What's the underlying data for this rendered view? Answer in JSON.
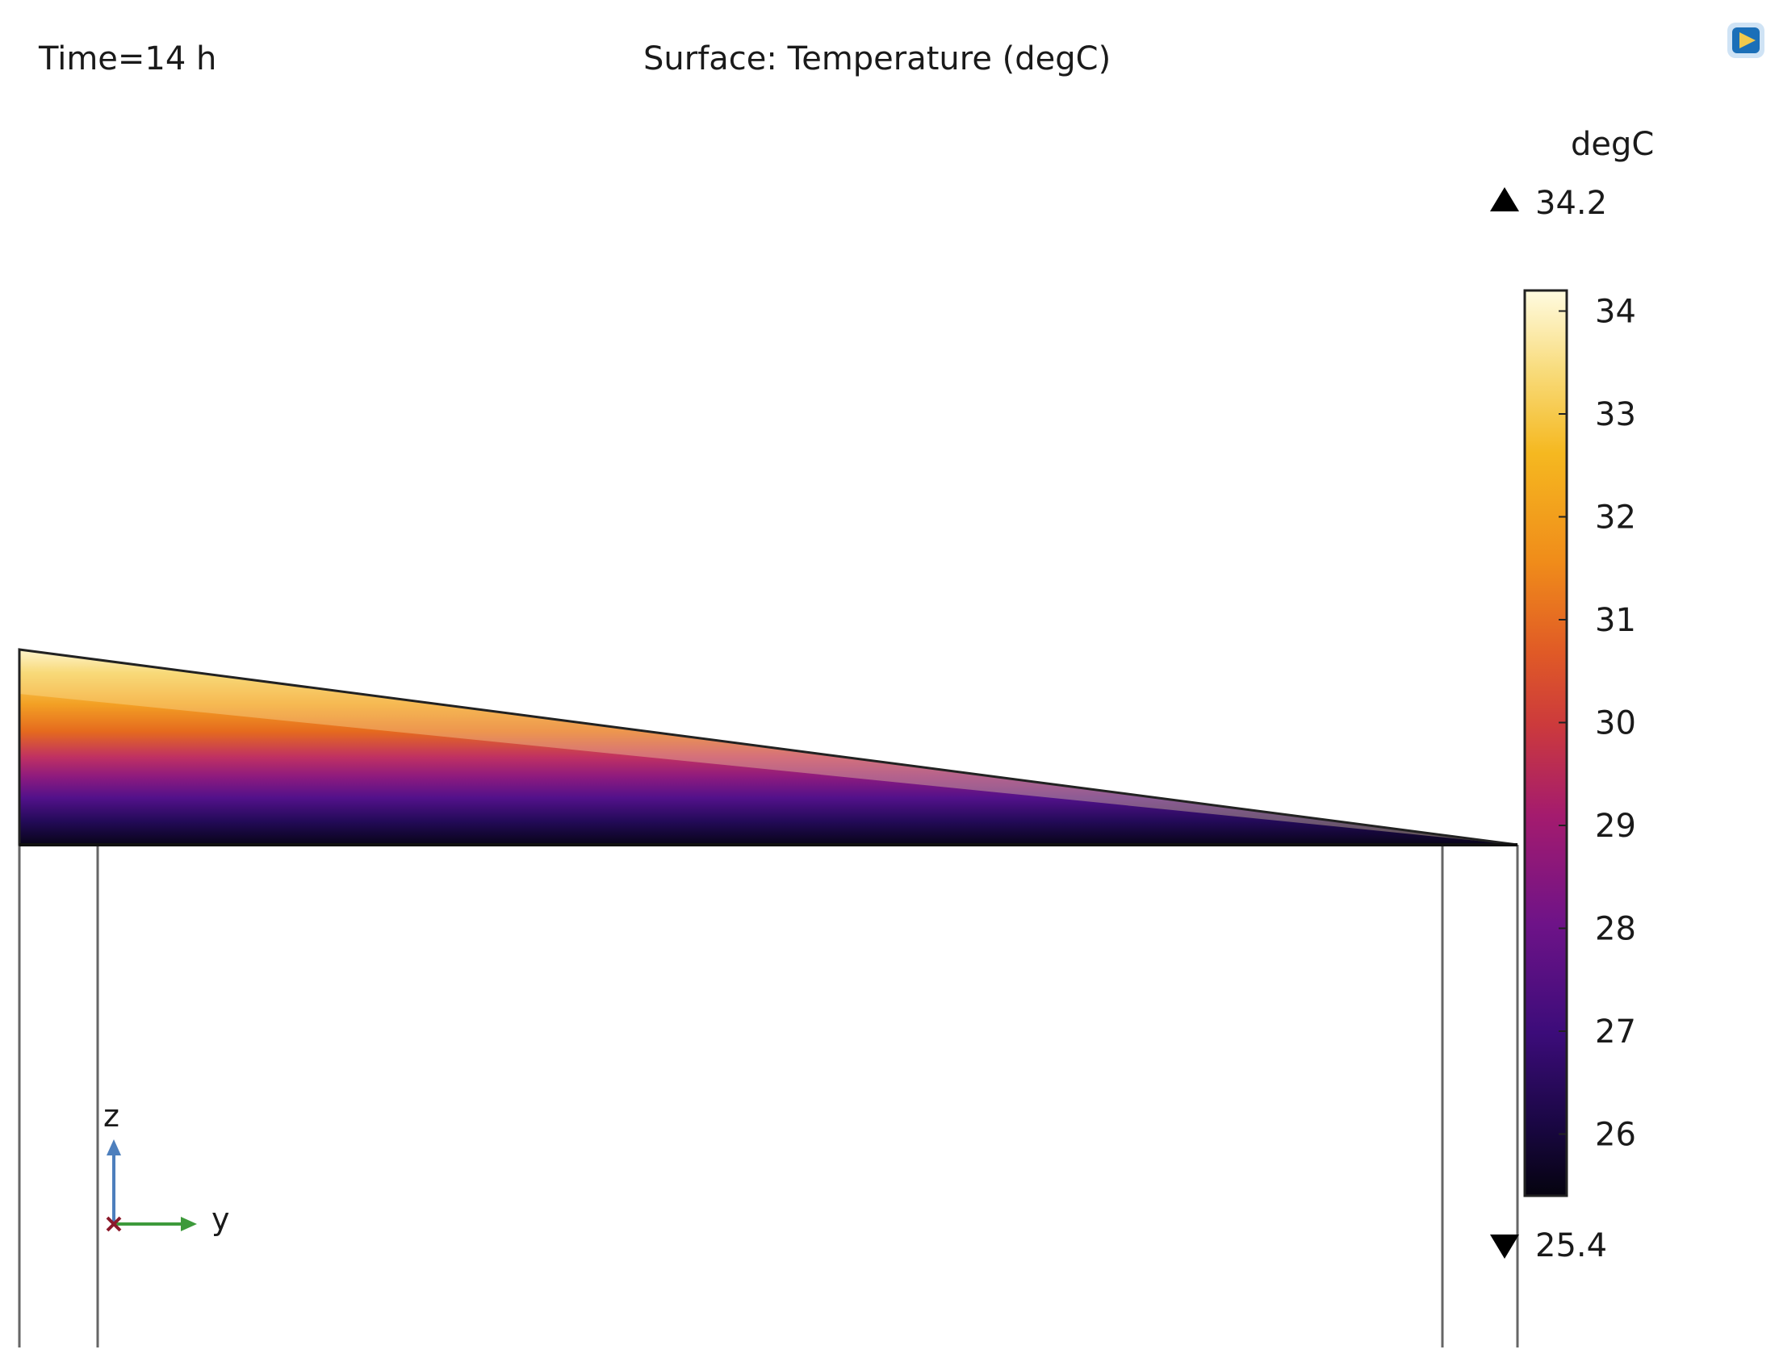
{
  "header": {
    "time_label": "Time=14 h",
    "plot_title": "Surface: Temperature (degC)"
  },
  "toolbar": {
    "corner_button_icon": "screenshot-icon"
  },
  "colorbar": {
    "unit": "degC",
    "max_value": "34.2",
    "min_value": "25.4",
    "tick_labels": [
      "34",
      "33",
      "32",
      "31",
      "30",
      "29",
      "28",
      "27",
      "26"
    ],
    "colormap": "thermal",
    "colors": [
      "#fffbe0",
      "#f6d25f",
      "#f6a21f",
      "#e9681f",
      "#d0402c",
      "#b31e59",
      "#8c167a",
      "#5a0f86",
      "#2f0a6a",
      "#0a0626"
    ]
  },
  "axes": {
    "z_label": "z",
    "y_label": "y",
    "z_color": "#4d7fbd",
    "y_color": "#3d9a3b",
    "x_color": "#8b1a2b"
  },
  "surface": {
    "field": "Temperature",
    "min": 25.4,
    "max": 34.2
  }
}
